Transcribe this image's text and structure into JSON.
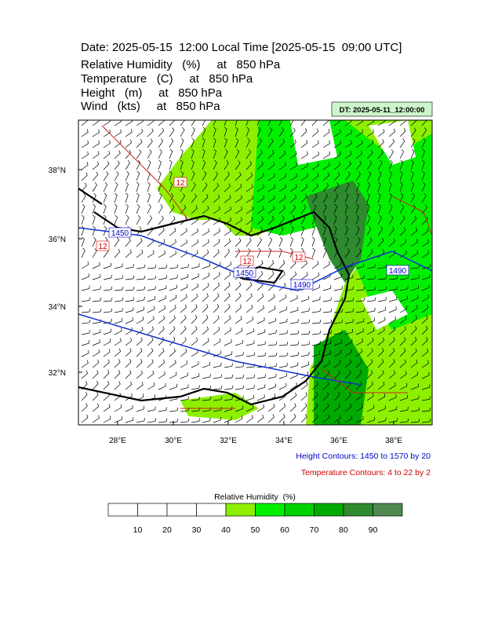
{
  "header": {
    "title": "Date: 2025-05-15  12:00 Local Time [2025-05-15  09:00 UTC]",
    "fields": [
      "Relative Humidity   (%)     at   850 hPa",
      "Temperature   (C)     at   850 hPa",
      "Height   (m)     at   850 hPa",
      "Wind   (kts)     at   850 hPa"
    ]
  },
  "dt_label": "DT: 2025-05-11_12:00:00",
  "map": {
    "lat_labels": [
      "38°N",
      "36°N",
      "34°N",
      "32°N"
    ],
    "lon_labels": [
      "28°E",
      "30°E",
      "32°E",
      "34°E",
      "36°E",
      "38°E"
    ],
    "contour_labels": [
      {
        "text": "12",
        "color": "#d00000"
      },
      {
        "text": "1450",
        "color": "#0000cc"
      },
      {
        "text": "12",
        "color": "#d00000"
      },
      {
        "text": "12",
        "color": "#d00000"
      },
      {
        "text": "1450",
        "color": "#0000cc"
      },
      {
        "text": "12",
        "color": "#d00000"
      },
      {
        "text": "1490",
        "color": "#0000cc"
      },
      {
        "text": "1490",
        "color": "#0000cc"
      }
    ]
  },
  "notes": [
    {
      "text": "Height Contours: 1450 to 1570 by 20",
      "color": "#0000cc"
    },
    {
      "text": "Temperature Contours: 4 to 22 by 2",
      "color": "#d00000"
    }
  ],
  "colorbar": {
    "title": "Relative Humidity  (%)",
    "labels": [
      "10",
      "20",
      "30",
      "40",
      "50",
      "60",
      "70",
      "80",
      "90"
    ],
    "colors": [
      "#ffffff",
      "#ffffff",
      "#ffffff",
      "#ffffff",
      "#8cf000",
      "#00f000",
      "#00d200",
      "#00aa00",
      "#2e8b2e",
      "#4f8a4f"
    ]
  }
}
